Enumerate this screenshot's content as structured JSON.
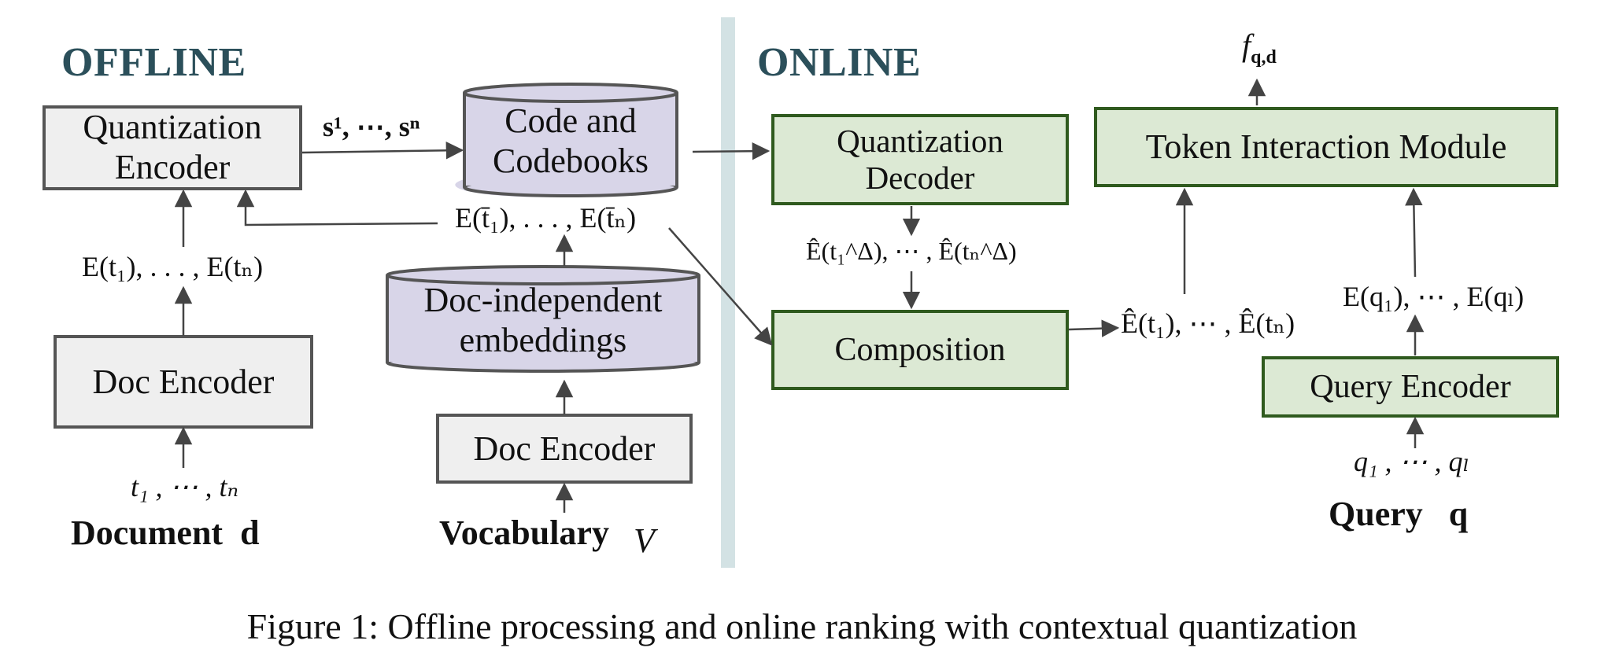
{
  "colors": {
    "section_title": "#2b4f5a",
    "gray_fill": "#efefef",
    "purple_fill": "#d8d5e8",
    "green_fill": "#dce9d4",
    "green_stroke": "#2f5a1e",
    "divider": "#d3e2e4",
    "arrow": "#444444"
  },
  "offline": {
    "title": "OFFLINE",
    "quantization_encoder": {
      "line1": "Quantization",
      "line2": "Encoder"
    },
    "codebooks": {
      "line1": "Code and",
      "line2": "Codebooks"
    },
    "doc_encoder_left": "Doc Encoder",
    "doc_independent": {
      "line1": "Doc-independent",
      "line2": "embeddings"
    },
    "doc_encoder_right": "Doc Encoder",
    "codes_label": "s¹, ⋯, sⁿ",
    "doc_emb_label": "E(t₁), . . . , E(tₙ)",
    "indep_emb_label": "E(t̄₁), . . . , E(t̄ₙ)",
    "doc_tokens": "t₁ , ⋯ , tₙ",
    "document_label": "Document",
    "document_symbol": "d",
    "vocabulary_label": "Vocabulary",
    "vocabulary_symbol": "V"
  },
  "online": {
    "title": "ONLINE",
    "quantization_decoder": {
      "line1": "Quantization",
      "line2": "Decoder"
    },
    "composition": "Composition",
    "token_interaction": "Token Interaction Module",
    "query_encoder": "Query Encoder",
    "score_label": "f",
    "score_subscript": "q,d",
    "delta_label": "Ê(t₁^Δ), ⋯ , Ê(tₙ^Δ)",
    "composed_label": "Ê(t₁), ⋯ , Ê(tₙ)",
    "query_emb_label": "E(q₁), ⋯ , E(qₗ)",
    "query_tokens": "q₁ , ⋯ , qₗ",
    "query_label": "Query",
    "query_symbol": "q"
  },
  "caption": "Figure 1: Offline processing and online ranking with contextual quantization"
}
